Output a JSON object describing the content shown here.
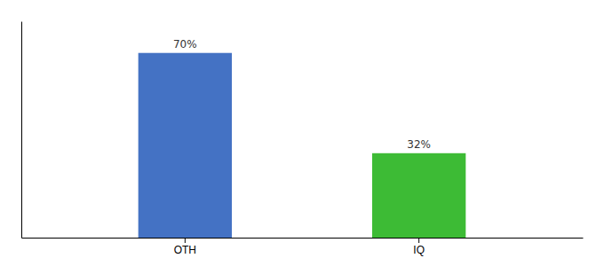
{
  "chart_data": {
    "type": "bar",
    "categories": [
      "OTH",
      "IQ"
    ],
    "values": [
      70,
      32
    ],
    "value_labels": [
      "70%",
      "32%"
    ],
    "colors": [
      "#4472c4",
      "#3dbb35"
    ],
    "ylim": [
      0,
      82
    ],
    "data_labels": true,
    "tick_labels": "x"
  }
}
